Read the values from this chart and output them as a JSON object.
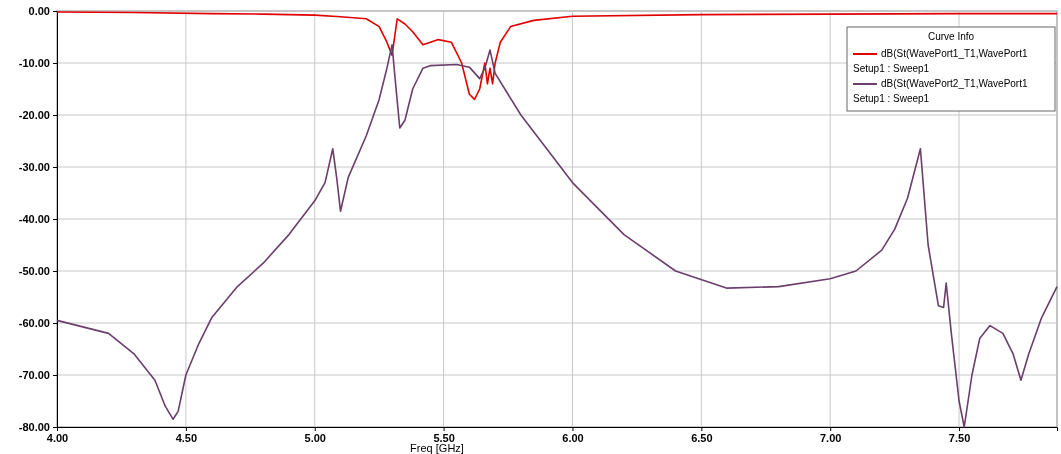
{
  "chart_data": {
    "type": "line",
    "xlabel": "Freq [GHz]",
    "legend_title": "Curve Info",
    "legend": "top right",
    "grid": true,
    "line_style": "solid",
    "xlim": [
      4,
      7.88
    ],
    "ylim": [
      -80,
      0
    ],
    "xticks": [
      {
        "value": 4,
        "label": "4.00"
      },
      {
        "value": 4.5,
        "label": "4.50"
      },
      {
        "value": 5,
        "label": "5.00"
      },
      {
        "value": 5.5,
        "label": "5.50"
      },
      {
        "value": 6,
        "label": "6.00"
      },
      {
        "value": 6.5,
        "label": "6.50"
      },
      {
        "value": 7,
        "label": "7.00"
      },
      {
        "value": 7.5,
        "label": "7.50"
      }
    ],
    "yticks": [
      {
        "value": 0,
        "label": "0.00"
      },
      {
        "value": -10,
        "label": "-10.00"
      },
      {
        "value": -20,
        "label": "-20.00"
      },
      {
        "value": -30,
        "label": "-30.00"
      },
      {
        "value": -40,
        "label": "-40.00"
      },
      {
        "value": -50,
        "label": "-50.00"
      },
      {
        "value": -60,
        "label": "-60.00"
      },
      {
        "value": -70,
        "label": "-70.00"
      },
      {
        "value": -80,
        "label": "-80.00"
      }
    ],
    "series": [
      {
        "name": "dB(St(WavePort1_T1,WavePort1\nSetup1 : Sweep1",
        "color": "#e00000",
        "x": [
          4,
          4.3,
          4.6,
          4.8,
          5,
          5.1,
          5.2,
          5.25,
          5.28,
          5.3,
          5.32,
          5.35,
          5.38,
          5.42,
          5.48,
          5.53,
          5.57,
          5.6,
          5.62,
          5.64,
          5.66,
          5.67,
          5.68,
          5.69,
          5.7,
          5.72,
          5.76,
          5.85,
          6,
          6.5,
          7,
          7.5,
          7.88
        ],
        "values": [
          -0.2,
          -0.3,
          -0.5,
          -0.6,
          -0.8,
          -1.1,
          -1.5,
          -3,
          -6,
          -8.5,
          -1.5,
          -2.5,
          -4,
          -6.5,
          -5.5,
          -6,
          -10,
          -16,
          -17,
          -15,
          -10,
          -14,
          -11,
          -14,
          -10,
          -6,
          -3,
          -1.8,
          -1,
          -0.7,
          -0.6,
          -0.5,
          -0.5
        ]
      },
      {
        "name": "dB(St(WavePort2_T1,WavePort1\nSetup1 : Sweep1",
        "color": "#6b3e6b",
        "x": [
          4,
          4.2,
          4.3,
          4.38,
          4.42,
          4.45,
          4.47,
          4.5,
          4.55,
          4.6,
          4.7,
          4.8,
          4.9,
          5,
          5.04,
          5.07,
          5.085,
          5.1,
          5.13,
          5.2,
          5.25,
          5.28,
          5.3,
          5.31,
          5.33,
          5.35,
          5.38,
          5.42,
          5.45,
          5.55,
          5.6,
          5.64,
          5.66,
          5.68,
          5.7,
          5.8,
          6,
          6.2,
          6.4,
          6.6,
          6.8,
          7,
          7.1,
          7.2,
          7.25,
          7.3,
          7.35,
          7.38,
          7.42,
          7.44,
          7.45,
          7.47,
          7.5,
          7.52,
          7.55,
          7.58,
          7.62,
          7.67,
          7.71,
          7.74,
          7.77,
          7.82,
          7.88
        ],
        "values": [
          -59.5,
          -62,
          -66,
          -71,
          -76,
          -78.5,
          -77,
          -70,
          -64,
          -59,
          -53,
          -48.5,
          -43,
          -36.5,
          -33,
          -26.5,
          -32,
          -38.5,
          -32,
          -24,
          -17,
          -11,
          -6.5,
          -12,
          -22.5,
          -21,
          -15,
          -11,
          -10.5,
          -10.3,
          -10.8,
          -13,
          -11,
          -7.5,
          -12,
          -20,
          -33,
          -43,
          -50,
          -53.3,
          -53,
          -51.5,
          -50,
          -46,
          -42,
          -36,
          -26.5,
          -45,
          -56.7,
          -57,
          -52.3,
          -62,
          -75,
          -80,
          -70,
          -63,
          -60.5,
          -62,
          -66,
          -71,
          -66,
          -59,
          -53
        ]
      }
    ]
  }
}
